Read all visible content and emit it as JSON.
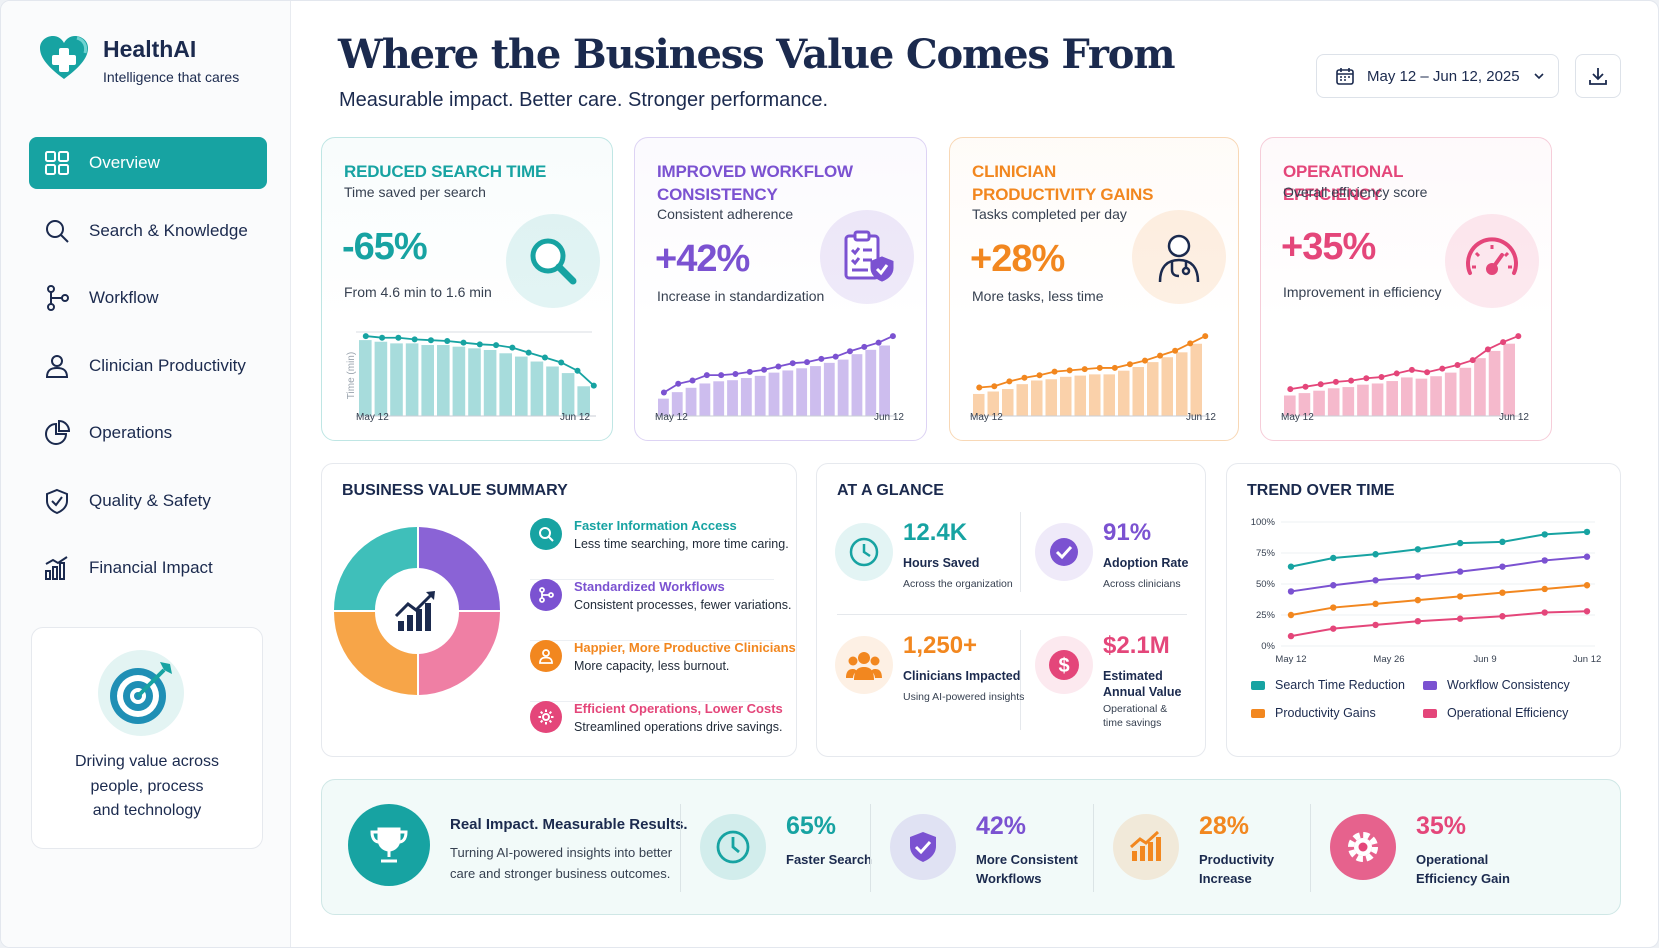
{
  "brand": {
    "name": "HealthAI",
    "tagline": "Intelligence that cares"
  },
  "nav": [
    {
      "label": "Overview",
      "icon": "grid-icon",
      "active": true
    },
    {
      "label": "Search & Knowledge",
      "icon": "search-icon"
    },
    {
      "label": "Workflow",
      "icon": "workflow-icon"
    },
    {
      "label": "Clinician Productivity",
      "icon": "user-icon"
    },
    {
      "label": "Operations",
      "icon": "pie-chart-icon"
    },
    {
      "label": "Quality & Safety",
      "icon": "shield-check-icon"
    },
    {
      "label": "Financial Impact",
      "icon": "bar-chart-icon"
    }
  ],
  "promo": {
    "line1": "Driving value across",
    "line2": "people, process",
    "line3": "and technology",
    "icon": "target-icon"
  },
  "header": {
    "title": "Where the Business Value Comes From",
    "subtitle": "Measurable impact. Better care. Stronger performance.",
    "date_range": "May 12 – Jun 12, 2025",
    "download_icon": "download-icon"
  },
  "kpis": [
    {
      "title": "REDUCED SEARCH TIME",
      "subtitle": "Time saved per search",
      "value": "-65%",
      "desc": "From 4.6 min to 1.6 min",
      "color": "#17a3a2",
      "border": "#bfe6e4",
      "icon": "magnifier-icon",
      "y_label": "Time (min)",
      "x_start": "May 12",
      "x_end": "Jun 12",
      "line": [
        4.6,
        4.5,
        4.5,
        4.4,
        4.35,
        4.3,
        4.2,
        4.1,
        4.05,
        3.9,
        3.6,
        3.3,
        3.0,
        2.5,
        1.6
      ],
      "bars": [
        4.6,
        4.5,
        4.4,
        4.4,
        4.3,
        4.3,
        4.2,
        4.1,
        4.0,
        3.8,
        3.6,
        3.3,
        3.0,
        2.6,
        1.8
      ]
    },
    {
      "title": "IMPROVED WORKFLOW CONSISTENCY",
      "subtitle": "Consistent adherence",
      "value": "+42%",
      "desc": "Increase in standardization",
      "color": "#7b52d1",
      "border": "#ddd3f4",
      "icon": "clipboard-shield-icon",
      "x_start": "May 12",
      "x_end": "Jun 12",
      "line": [
        1.8,
        2.6,
        2.9,
        3.4,
        3.4,
        3.5,
        3.7,
        3.9,
        4.2,
        4.5,
        4.6,
        4.9,
        5.1,
        5.6,
        6.0,
        6.4,
        7.0
      ],
      "bars": [
        1.6,
        2.2,
        2.6,
        3.0,
        3.2,
        3.3,
        3.5,
        3.7,
        4.0,
        4.2,
        4.4,
        4.6,
        4.9,
        5.2,
        5.7,
        6.1,
        6.5
      ]
    },
    {
      "title": "CLINICIAN PRODUCTIVITY GAINS",
      "subtitle": "Tasks completed per day",
      "value": "+28%",
      "desc": "More tasks, less time",
      "color": "#f2871f",
      "border": "#f8d8b6",
      "icon": "doctor-icon",
      "x_start": "May 12",
      "x_end": "Jun 12",
      "line": [
        2.0,
        2.1,
        2.5,
        2.8,
        3.0,
        3.3,
        3.4,
        3.5,
        3.6,
        3.6,
        3.9,
        4.2,
        4.6,
        5.0,
        5.6,
        6.2
      ],
      "bars": [
        1.8,
        2.0,
        2.2,
        2.6,
        2.9,
        3.0,
        3.2,
        3.3,
        3.4,
        3.4,
        3.7,
        4.0,
        4.4,
        4.8,
        5.2,
        5.9
      ]
    },
    {
      "title": "OPERATIONAL EFFICIENCY",
      "subtitle": "Overall efficiency score",
      "value": "+35%",
      "desc": "Improvement in efficiency",
      "color": "#e4467a",
      "border": "#f6cdd9",
      "icon": "gauge-icon",
      "x_start": "May 12",
      "x_end": "Jun 12",
      "line": [
        1.9,
        2.1,
        2.3,
        2.5,
        2.6,
        2.8,
        2.9,
        3.2,
        3.5,
        3.3,
        3.6,
        3.9,
        4.3,
        5.2,
        5.8,
        6.3
      ],
      "bars": [
        1.7,
        1.9,
        2.1,
        2.3,
        2.4,
        2.6,
        2.7,
        2.9,
        3.2,
        3.1,
        3.3,
        3.6,
        4.0,
        4.8,
        5.4,
        6.0
      ]
    }
  ],
  "summary": {
    "title": "BUSINESS VALUE SUMMARY",
    "center_icon": "growth-chart-icon",
    "items": [
      {
        "title": "Faster Information Access",
        "desc": "Less time searching, more time caring.",
        "color": "#17a3a2",
        "icon": "search-icon"
      },
      {
        "title": "Standardized Workflows",
        "desc": "Consistent processes, fewer variations.",
        "color": "#7b52d1",
        "icon": "workflow-icon"
      },
      {
        "title": "Happier, More Productive Clinicians",
        "desc": "More capacity, less burnout.",
        "color": "#f2871f",
        "icon": "user-icon"
      },
      {
        "title": "Efficient Operations, Lower Costs",
        "desc": "Streamlined operations drive savings.",
        "color": "#e4467a",
        "icon": "gear-icon"
      }
    ]
  },
  "glance": {
    "title": "AT A GLANCE",
    "items": [
      {
        "value": "12.4K",
        "label": "Hours Saved",
        "sub": "Across the organization",
        "color": "#17a3a2",
        "icon": "clock-icon"
      },
      {
        "value": "91%",
        "label": "Adoption Rate",
        "sub": "Across clinicians",
        "color": "#7b52d1",
        "icon": "check-badge-icon"
      },
      {
        "value": "1,250+",
        "label": "Clinicians Impacted",
        "sub": "Using AI-powered insights",
        "color": "#f2871f",
        "icon": "people-icon"
      },
      {
        "value": "$2.1M",
        "label": "Estimated Annual Value",
        "sub": "Operational & time savings",
        "color": "#e4467a",
        "icon": "dollar-icon"
      }
    ]
  },
  "trend": {
    "title": "TREND OVER TIME",
    "y_ticks": [
      "100%",
      "75%",
      "50%",
      "25%",
      "0%"
    ],
    "x_ticks": [
      "May 12",
      "May 26",
      "Jun 9",
      "Jun 12"
    ],
    "series": [
      {
        "name": "Search Time Reduction",
        "color": "#17a3a2",
        "values": [
          64,
          71,
          74,
          78,
          83,
          84,
          90,
          92
        ]
      },
      {
        "name": "Workflow Consistency",
        "color": "#7b52d1",
        "values": [
          44,
          49,
          53,
          56,
          60,
          64,
          69,
          72
        ]
      },
      {
        "name": "Productivity Gains",
        "color": "#f2871f",
        "values": [
          25,
          31,
          34,
          37,
          40,
          43,
          46,
          49
        ]
      },
      {
        "name": "Operational Efficiency",
        "color": "#e4467a",
        "values": [
          8,
          14,
          17,
          20,
          22,
          24,
          27,
          28
        ]
      }
    ]
  },
  "banner": {
    "title": "Real Impact. Measurable Results.",
    "desc1": "Turning AI-powered insights into better",
    "desc2": "care and stronger business outcomes.",
    "icon": "trophy-icon",
    "stats": [
      {
        "value": "65%",
        "line1": "Faster Search",
        "line2": "",
        "color": "#17a3a2",
        "icon": "clock-icon"
      },
      {
        "value": "42%",
        "line1": "More Consistent",
        "line2": "Workflows",
        "color": "#7b52d1",
        "icon": "shield-check-icon"
      },
      {
        "value": "28%",
        "line1": "Productivity",
        "line2": "Increase",
        "color": "#f2871f",
        "icon": "growth-chart-icon"
      },
      {
        "value": "35%",
        "line1": "Operational",
        "line2": "Efficiency Gain",
        "color": "#e4467a",
        "icon": "gear-icon"
      }
    ]
  }
}
